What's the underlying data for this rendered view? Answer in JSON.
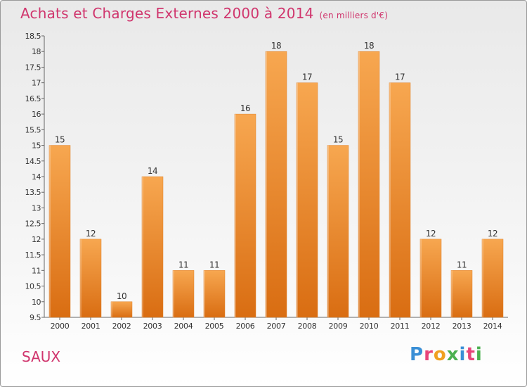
{
  "header": {
    "title": "Achats et Charges Externes 2000 à 2014",
    "subtitle": "(en milliers d'€)"
  },
  "footer": {
    "place": "SAUX",
    "logo": "Proxiti"
  },
  "colors": {
    "title": "#d0356d",
    "bar_light": "#f7a750",
    "bar_dark": "#d96d12",
    "logo": [
      "#3a8fd6",
      "#e8447a",
      "#f0a020",
      "#4cb050",
      "#3a8fd6",
      "#e8447a",
      "#4cb050"
    ]
  },
  "chart_data": {
    "type": "bar",
    "title": "Achats et Charges Externes 2000 à 2014",
    "subtitle": "(en milliers d'€)",
    "categories": [
      "2000",
      "2001",
      "2002",
      "2003",
      "2004",
      "2005",
      "2006",
      "2007",
      "2008",
      "2009",
      "2010",
      "2011",
      "2012",
      "2013",
      "2014"
    ],
    "values": [
      15,
      12,
      10,
      14,
      11,
      11,
      16,
      18,
      17,
      15,
      18,
      17,
      12,
      11,
      12
    ],
    "data_labels": [
      "15",
      "12",
      "10",
      "14",
      "11",
      "11",
      "16",
      "18",
      "17",
      "15",
      "18",
      "17",
      "12",
      "11",
      "12"
    ],
    "ylim": [
      9.5,
      18.5
    ],
    "yticks": [
      9.5,
      10,
      10.5,
      11,
      11.5,
      12,
      12.5,
      13,
      13.5,
      14,
      14.5,
      15,
      15.5,
      16,
      16.5,
      17,
      17.5,
      18,
      18.5
    ],
    "ytick_labels": [
      "9.5",
      "10",
      "10.5",
      "11",
      "11.5",
      "12",
      "12.5",
      "13",
      "13.5",
      "14",
      "14.5",
      "15",
      "15.5",
      "16",
      "16.5",
      "17",
      "17.5",
      "18",
      "18.5"
    ],
    "xlabel": "",
    "ylabel": "",
    "grid": false
  }
}
